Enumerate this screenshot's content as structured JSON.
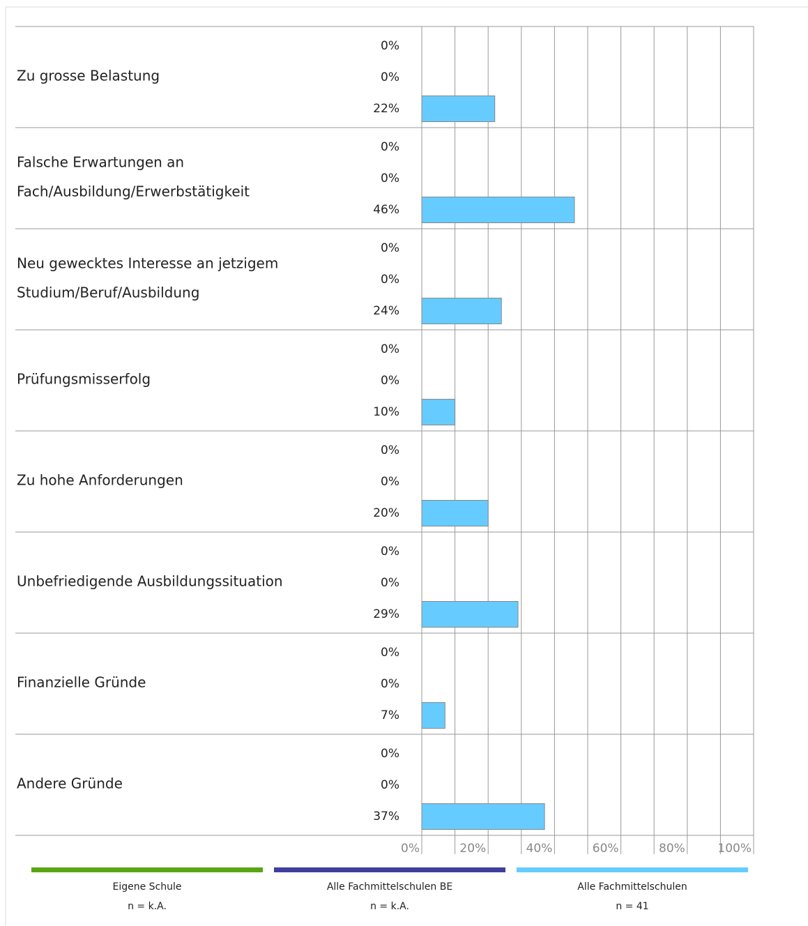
{
  "chart_data": {
    "type": "bar",
    "orientation": "horizontal",
    "categories": [
      [
        "Zu grosse Belastung"
      ],
      [
        "Falsche Erwartungen an",
        "Fach/Ausbildung/Erwerbstätigkeit"
      ],
      [
        "Neu gewecktes Interesse an jetzigem",
        "Studium/Beruf/Ausbildung"
      ],
      [
        "Prüfungsmisserfolg"
      ],
      [
        "Zu hohe Anforderungen"
      ],
      [
        "Unbefriedigende Ausbildungssituation"
      ],
      [
        "Finanzielle Gründe"
      ],
      [
        "Andere Gründe"
      ]
    ],
    "series": [
      {
        "name": "Eigene Schule",
        "n": "n = k.A.",
        "color": "#5aa514",
        "values": [
          0,
          0,
          0,
          0,
          0,
          0,
          0,
          0
        ],
        "value_labels": [
          "0%",
          "0%",
          "0%",
          "0%",
          "0%",
          "0%",
          "0%",
          "0%"
        ]
      },
      {
        "name": "Alle Fachmittelschulen BE",
        "n": "n = k.A.",
        "color": "#3f3f9f",
        "values": [
          0,
          0,
          0,
          0,
          0,
          0,
          0,
          0
        ],
        "value_labels": [
          "0%",
          "0%",
          "0%",
          "0%",
          "0%",
          "0%",
          "0%",
          "0%"
        ]
      },
      {
        "name": "Alle Fachmittelschulen",
        "n": "n = 41",
        "color": "#66ccff",
        "values": [
          22,
          46,
          24,
          10,
          20,
          29,
          7,
          37
        ],
        "value_labels": [
          "22%",
          "46%",
          "24%",
          "10%",
          "20%",
          "29%",
          "7%",
          "37%"
        ]
      }
    ],
    "xlim": [
      0,
      100
    ],
    "xticks": [
      {
        "value": 0,
        "label": "0%"
      },
      {
        "value": 20,
        "label": "20%"
      },
      {
        "value": 40,
        "label": "40%"
      },
      {
        "value": 60,
        "label": "60%"
      },
      {
        "value": 80,
        "label": "80%"
      },
      {
        "value": 100,
        "label": "100%"
      }
    ],
    "minor_xticks": [
      10,
      30,
      50,
      70,
      90
    ],
    "grid": true
  }
}
